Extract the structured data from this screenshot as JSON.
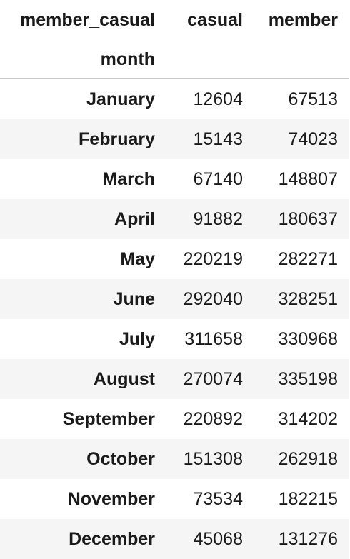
{
  "table": {
    "columns_name": "member_casual",
    "index_name": "month",
    "columns": [
      "casual",
      "member"
    ],
    "rows": [
      {
        "month": "January",
        "casual": "12604",
        "member": "67513"
      },
      {
        "month": "February",
        "casual": "15143",
        "member": "74023"
      },
      {
        "month": "March",
        "casual": "67140",
        "member": "148807"
      },
      {
        "month": "April",
        "casual": "91882",
        "member": "180637"
      },
      {
        "month": "May",
        "casual": "220219",
        "member": "282271"
      },
      {
        "month": "June",
        "casual": "292040",
        "member": "328251"
      },
      {
        "month": "July",
        "casual": "311658",
        "member": "330968"
      },
      {
        "month": "August",
        "casual": "270074",
        "member": "335198"
      },
      {
        "month": "September",
        "casual": "220892",
        "member": "314202"
      },
      {
        "month": "October",
        "casual": "151308",
        "member": "262918"
      },
      {
        "month": "November",
        "casual": "73534",
        "member": "182215"
      },
      {
        "month": "December",
        "casual": "45068",
        "member": "131276"
      }
    ]
  },
  "colors": {
    "stripe": "#f5f5f5",
    "divider": "#c8c8c8",
    "text": "#1a1a1a"
  }
}
